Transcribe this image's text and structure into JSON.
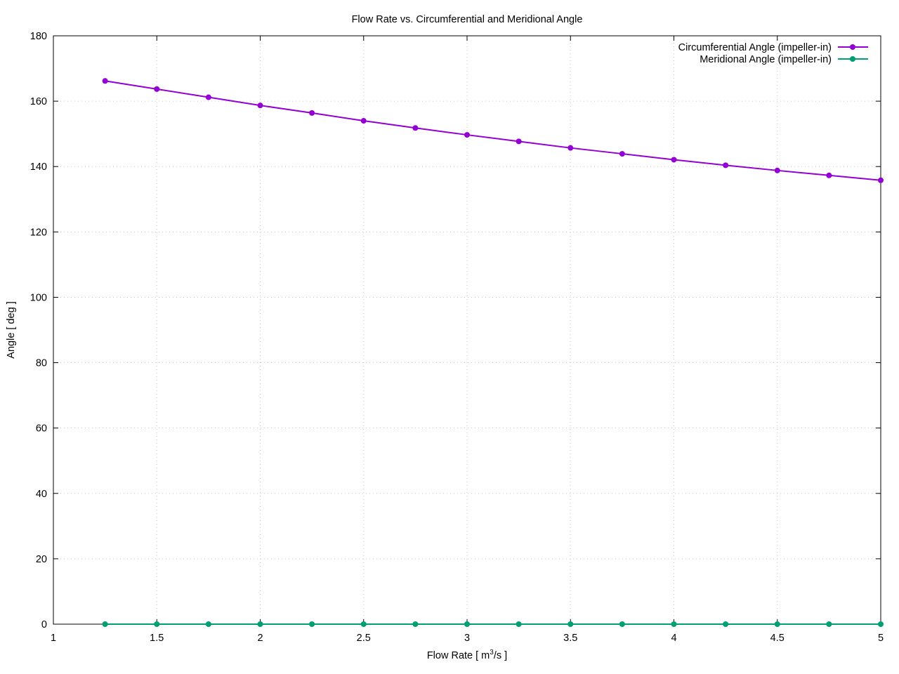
{
  "chart_data": {
    "type": "line",
    "title": "Flow Rate vs. Circumferential and Meridional Angle",
    "xlabel": {
      "main": "Flow Rate [ m",
      "sup": "3",
      "tail": "/s ]"
    },
    "ylabel": "Angle [ deg ]",
    "xlim": [
      1,
      5
    ],
    "ylim": [
      0,
      180
    ],
    "xticks": [
      "1",
      "1.5",
      "2",
      "2.5",
      "3",
      "3.5",
      "4",
      "4.5",
      "5"
    ],
    "yticks": [
      "0",
      "20",
      "40",
      "60",
      "80",
      "100",
      "120",
      "140",
      "160",
      "180"
    ],
    "grid": true,
    "legend_position": "top-right",
    "x": [
      1.25,
      1.5,
      1.75,
      2.0,
      2.25,
      2.5,
      2.75,
      3.0,
      3.25,
      3.5,
      3.75,
      4.0,
      4.25,
      4.5,
      4.75,
      5.0
    ],
    "series": [
      {
        "name": "Circumferential Angle (impeller-in)",
        "color": "#9400d3",
        "values": [
          166.2,
          163.7,
          161.2,
          158.7,
          156.4,
          154.0,
          151.8,
          149.7,
          147.7,
          145.7,
          143.9,
          142.1,
          140.4,
          138.8,
          137.3,
          135.8
        ]
      },
      {
        "name": "Meridional Angle (impeller-in)",
        "color": "#009e73",
        "values": [
          0,
          0,
          0,
          0,
          0,
          0,
          0,
          0,
          0,
          0,
          0,
          0,
          0,
          0,
          0,
          0
        ]
      }
    ]
  }
}
